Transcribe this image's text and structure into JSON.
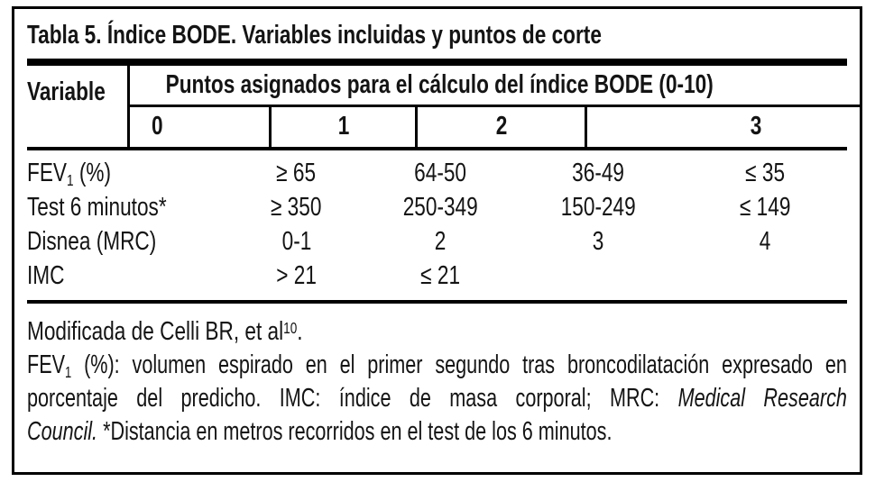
{
  "title": "Tabla 5. Índice BODE. Variables incluidas y puntos de corte",
  "table": {
    "variable_header": "Variable",
    "points_header": "Puntos asignados para el cálculo del índice BODE (0-10)",
    "score_headers": [
      "0",
      "1",
      "2",
      "3"
    ],
    "rows": [
      {
        "label_segments": [
          {
            "t": "FEV"
          },
          {
            "t": "1",
            "s": "sub"
          },
          {
            "t": " (%)"
          }
        ],
        "values": [
          "≥ 65",
          "64-50",
          "36-49",
          "≤ 35"
        ]
      },
      {
        "label_segments": [
          {
            "t": "Test 6 minutos*"
          }
        ],
        "values": [
          "≥ 350",
          "250-349",
          "150-249",
          "≤ 149"
        ]
      },
      {
        "label_segments": [
          {
            "t": "Disnea (MRC)"
          }
        ],
        "values": [
          "0-1",
          "2",
          "3",
          "4"
        ]
      },
      {
        "label_segments": [
          {
            "t": "IMC"
          }
        ],
        "values": [
          "> 21",
          "≤ 21",
          "",
          ""
        ]
      }
    ]
  },
  "footnotes": {
    "note1_segments": [
      {
        "t": "Modificada de Celli BR, et al"
      },
      {
        "t": "10",
        "s": "sup"
      },
      {
        "t": "."
      }
    ],
    "note2_lines": [
      {
        "segments": [
          {
            "t": "FEV"
          },
          {
            "t": "1",
            "s": "sub"
          },
          {
            "t": " (%): volumen espirado en el primer segundo tras broncodilatación expresado en"
          }
        ]
      },
      {
        "segments": [
          {
            "t": "porcentaje del predicho. IMC: índice de masa corporal; MRC: "
          },
          {
            "t": "Medical Research",
            "s": "italic"
          }
        ]
      },
      {
        "segments": [
          {
            "t": "Council.",
            "s": "italic"
          },
          {
            "t": " *Distancia en metros recorridos en el test de los 6 minutos."
          }
        ]
      }
    ]
  },
  "colors": {
    "text": "#141414",
    "rule": "#000000",
    "background": "#ffffff"
  }
}
